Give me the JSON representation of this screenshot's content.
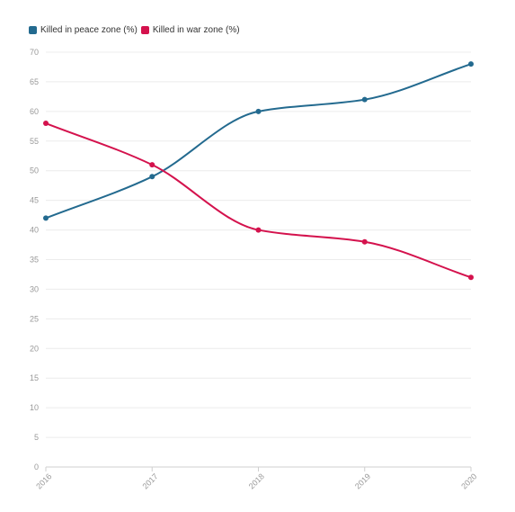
{
  "chart_data": {
    "type": "line",
    "x": [
      "2016",
      "2017",
      "2018",
      "2019",
      "2020"
    ],
    "series": [
      {
        "name": "Killed in peace zone (%)",
        "color": "#236a8f",
        "values": [
          42,
          49,
          60,
          62,
          68
        ]
      },
      {
        "name": "Killed in war zone (%)",
        "color": "#d4124d",
        "values": [
          58,
          51,
          40,
          38,
          32
        ]
      }
    ],
    "ylim": [
      0,
      70
    ],
    "yticks": [
      0,
      5,
      10,
      15,
      20,
      25,
      30,
      35,
      40,
      45,
      50,
      55,
      60,
      65,
      70
    ],
    "grid": true,
    "legend_position": "top-left",
    "title": "",
    "xlabel": "",
    "ylabel": ""
  }
}
